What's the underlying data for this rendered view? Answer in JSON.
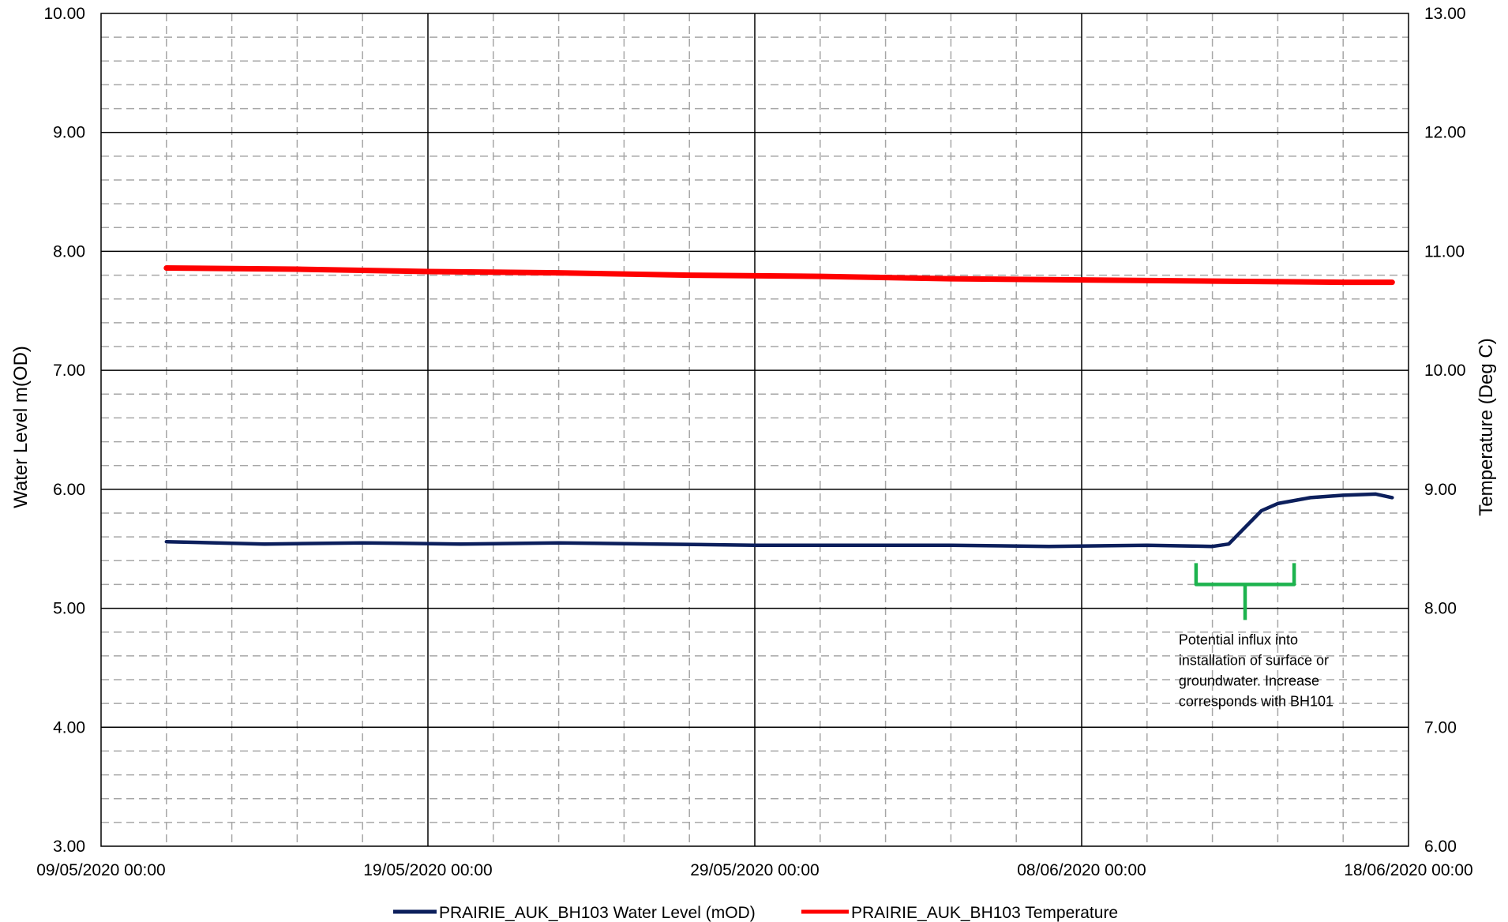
{
  "colors": {
    "water_level": "#0c1f5c",
    "temperature": "#ff0000",
    "bracket": "#1db34e",
    "grid_major": "#000000",
    "grid_minor": "#a6a6a6"
  },
  "chart_data": {
    "type": "line",
    "title": "",
    "xlabel": "",
    "ylabel": "Water Level m(OD)",
    "y2label": "Temperature (Deg C)",
    "xlim": [
      "09/05/2020 00:00",
      "18/06/2020 00:00"
    ],
    "ylim": [
      3.0,
      10.0
    ],
    "y2lim": [
      6.0,
      13.0
    ],
    "grid": true,
    "legend": "bottom",
    "x_tick_labels": [
      "09/05/2020 00:00",
      "19/05/2020 00:00",
      "29/05/2020 00:00",
      "08/06/2020 00:00",
      "18/06/2020 00:00"
    ],
    "y_tick_labels": [
      "10.00",
      "9.00",
      "8.00",
      "7.00",
      "6.00",
      "5.00",
      "4.00",
      "3.00"
    ],
    "y2_tick_labels": [
      "13.00",
      "12.00",
      "11.00",
      "10.00",
      "9.00",
      "8.00",
      "7.00",
      "6.00"
    ],
    "series": [
      {
        "name": "PRAIRIE_AUK_BH103 Water Level (mOD)",
        "axis": "left",
        "x": [
          "11/05/2020 00:00",
          "14/05/2020 00:00",
          "17/05/2020 00:00",
          "20/05/2020 00:00",
          "23/05/2020 00:00",
          "26/05/2020 00:00",
          "29/05/2020 00:00",
          "01/06/2020 00:00",
          "04/06/2020 00:00",
          "07/06/2020 00:00",
          "10/06/2020 00:00",
          "12/06/2020 00:00",
          "12/06/2020 12:00",
          "13/06/2020 00:00",
          "13/06/2020 12:00",
          "14/06/2020 00:00",
          "15/06/2020 00:00",
          "16/06/2020 00:00",
          "17/06/2020 00:00",
          "17/06/2020 12:00"
        ],
        "values": [
          5.56,
          5.54,
          5.55,
          5.54,
          5.55,
          5.54,
          5.53,
          5.53,
          5.53,
          5.52,
          5.53,
          5.52,
          5.54,
          5.68,
          5.82,
          5.88,
          5.93,
          5.95,
          5.96,
          5.93
        ]
      },
      {
        "name": "PRAIRIE_AUK_BH103 Temperature",
        "axis": "right",
        "x": [
          "11/05/2020 00:00",
          "15/05/2020 00:00",
          "19/05/2020 00:00",
          "23/05/2020 00:00",
          "27/05/2020 00:00",
          "31/05/2020 00:00",
          "04/06/2020 00:00",
          "08/06/2020 00:00",
          "12/06/2020 00:00",
          "16/06/2020 00:00",
          "17/06/2020 12:00"
        ],
        "values": [
          10.86,
          10.85,
          10.83,
          10.82,
          10.8,
          10.79,
          10.77,
          10.76,
          10.75,
          10.74,
          10.74
        ]
      }
    ],
    "annotations": [
      {
        "text_lines": [
          "Potential influx into",
          "installation of surface or",
          "groundwater. Increase",
          "corresponds with BH101"
        ],
        "bracket_from": "11/06/2020 12:00",
        "bracket_to": "14/06/2020 12:00",
        "bracket_level": 5.2
      }
    ]
  }
}
